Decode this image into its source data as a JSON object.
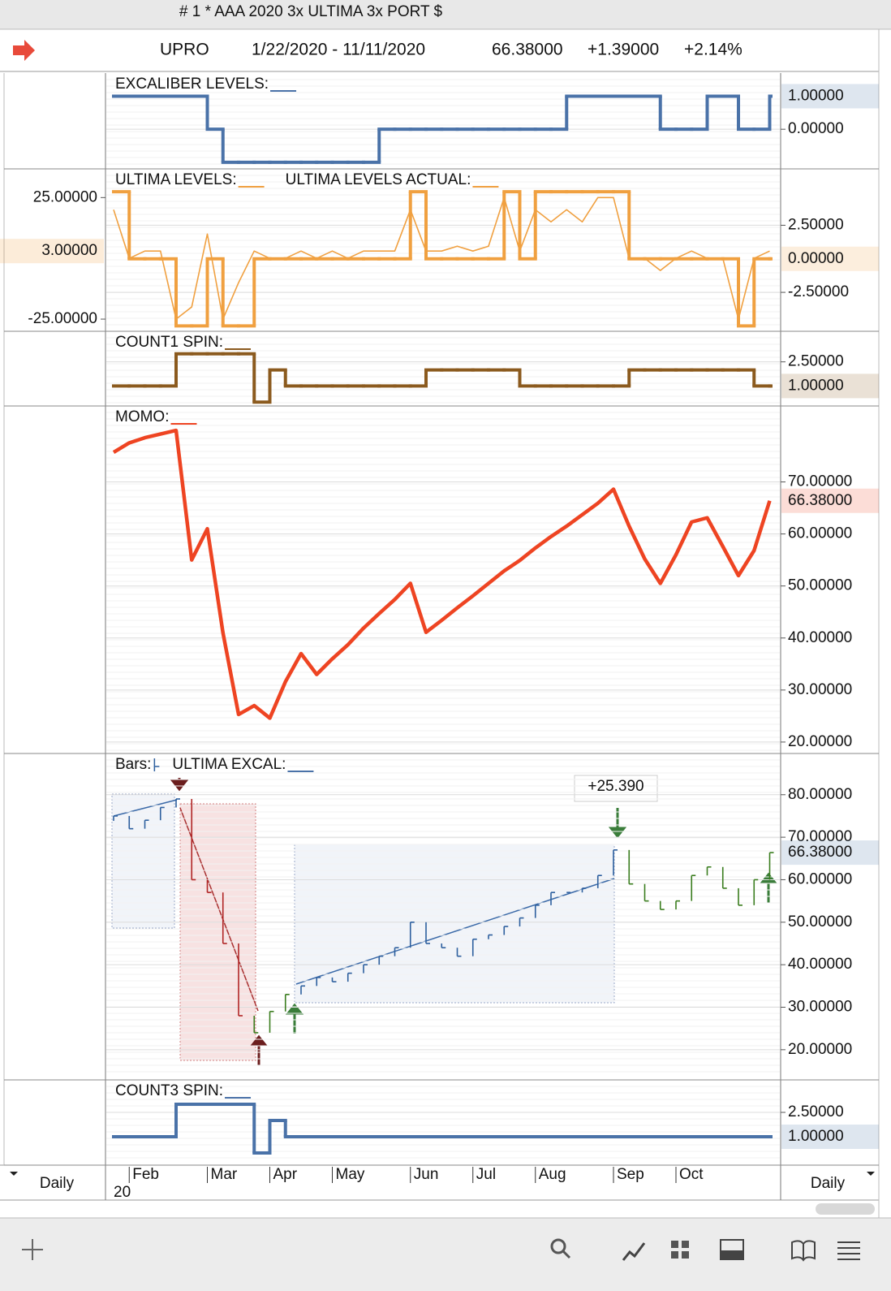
{
  "header": {
    "title": "# 1 * AAA 2020 3x ULTIMA 3x PORT $",
    "symbol": "UPRO",
    "range": "1/22/2020 - 11/11/2020",
    "last": "66.38000",
    "change": "+1.39000",
    "change_pct": "+2.14%"
  },
  "x_axis": {
    "categories": [
      null,
      "Feb",
      null,
      null,
      null,
      null,
      "Mar",
      null,
      null,
      null,
      "Apr",
      null,
      null,
      null,
      "May",
      null,
      null,
      null,
      null,
      "Jun",
      null,
      null,
      null,
      "Jul",
      null,
      null,
      null,
      "Aug",
      null,
      null,
      null,
      null,
      "Sep",
      null,
      null,
      null,
      "Oct",
      null,
      null,
      null,
      null,
      null,
      null
    ],
    "year_label": "20",
    "period": "Daily"
  },
  "chart_data": [
    {
      "type": "line",
      "grid": true,
      "series": [
        {
          "name": "EXCALIBER LEVELS:",
          "color": "#4a72a8",
          "line": "step",
          "values": [
            1,
            1,
            1,
            1,
            1,
            1,
            0,
            -1,
            -1,
            -1,
            -1,
            -1,
            -1,
            -1,
            -1,
            -1,
            -1,
            0,
            0,
            0,
            0,
            0,
            0,
            0,
            0,
            0,
            0,
            0,
            0,
            1,
            1,
            1,
            1,
            1,
            1,
            0,
            0,
            0,
            1,
            1,
            0,
            0,
            1
          ]
        }
      ],
      "ylim": [
        -1.2,
        1.7
      ],
      "yticks": [
        {
          "value": 0,
          "label": "0.00000"
        }
      ],
      "last_value": {
        "value": 1,
        "label": "1.00000"
      }
    },
    {
      "type": "line",
      "grid": true,
      "series": [
        {
          "name": "ULTIMA LEVELS:",
          "color": "#f0a040",
          "line": "step",
          "values": [
            5,
            0,
            0,
            0,
            -5,
            -5,
            0,
            -5,
            -5,
            0,
            0,
            0,
            0,
            0,
            0,
            0,
            0,
            0,
            0,
            5,
            0,
            0,
            0,
            0,
            0,
            5,
            0,
            5,
            5,
            5,
            5,
            5,
            5,
            0,
            0,
            0,
            0,
            0,
            0,
            0,
            -5,
            0,
            0
          ]
        },
        {
          "name": "ULTIMA LEVELS ACTUAL:",
          "color": "#f0a040",
          "line": "thin",
          "axis": "y2",
          "values": [
            20,
            0,
            3,
            3,
            -25,
            -20,
            10,
            -25,
            -10,
            3,
            0,
            0,
            3,
            0,
            3,
            0,
            3,
            3,
            3,
            20,
            3,
            3,
            5,
            3,
            5,
            25,
            3,
            20,
            15,
            20,
            15,
            25,
            25,
            0,
            0,
            -5,
            0,
            3,
            0,
            0,
            -25,
            0,
            3
          ]
        }
      ],
      "ylim": [
        -5.4,
        6.7
      ],
      "yticks": [
        {
          "value": 2.5,
          "label": "2.50000"
        },
        {
          "value": -2.5,
          "label": "-2.50000"
        }
      ],
      "last_value": {
        "value": 0,
        "label": "0.00000"
      },
      "y2lim": [
        -30,
        36.8
      ],
      "y2ticks": [
        {
          "value": 25,
          "label": "25.00000"
        },
        {
          "value": -25,
          "label": "-25.00000"
        }
      ],
      "y2_last_value": {
        "value": 3,
        "label": "3.00000"
      }
    },
    {
      "type": "line",
      "grid": true,
      "series": [
        {
          "name": "COUNT1 SPIN:",
          "color": "#8b5a1e",
          "line": "step",
          "values": [
            1,
            1,
            1,
            1,
            3,
            3,
            3,
            3,
            3,
            0,
            2,
            1,
            1,
            1,
            1,
            1,
            1,
            1,
            1,
            1,
            2,
            2,
            2,
            2,
            2,
            2,
            1,
            1,
            1,
            1,
            1,
            1,
            1,
            2,
            2,
            2,
            2,
            2,
            2,
            2,
            2,
            1,
            1
          ]
        }
      ],
      "ylim": [
        -0.24,
        4.4
      ],
      "yticks": [
        {
          "value": 2.5,
          "label": "2.50000"
        }
      ],
      "last_value": {
        "value": 1,
        "label": "1.00000"
      }
    },
    {
      "type": "line",
      "grid": true,
      "series": [
        {
          "name": "MOMO:",
          "color": "#ee4422",
          "line": "thick",
          "values": [
            75.7,
            77.5,
            78.5,
            79.2,
            79.9,
            55,
            61,
            41,
            25.3,
            27,
            24.6,
            31.6,
            37,
            33,
            36,
            38.7,
            41.9,
            44.7,
            47.4,
            50.5,
            41.1,
            43.4,
            45.8,
            48.1,
            50.5,
            52.9,
            54.9,
            57.3,
            59.5,
            61.5,
            63.7,
            65.9,
            68.6,
            61.5,
            55.2,
            50.5,
            56,
            62.3,
            63.1,
            57.6,
            52,
            56.8,
            66.38
          ]
        }
      ],
      "ylim": [
        17.8,
        84.6
      ],
      "yticks": [
        {
          "value": 70,
          "label": "70.00000"
        },
        {
          "value": 60,
          "label": "60.00000"
        },
        {
          "value": 50,
          "label": "50.00000"
        },
        {
          "value": 40,
          "label": "40.00000"
        },
        {
          "value": 30,
          "label": "30.00000"
        },
        {
          "value": 20,
          "label": "20.00000"
        }
      ],
      "last_value": {
        "value": 66.38,
        "label": "66.38000"
      }
    },
    {
      "type": "bars",
      "grid": true,
      "overlay": "ULTIMA EXCAL:",
      "annotation": "+25.390",
      "series": [
        {
          "name": "Bars:",
          "color": "#4a72a8",
          "values": [
            75,
            72,
            74,
            77,
            79,
            60,
            57,
            45,
            28,
            24,
            29,
            33,
            35,
            37,
            36,
            38,
            40,
            42,
            44,
            50,
            45,
            44,
            42,
            46,
            47,
            49,
            51,
            54,
            57,
            57,
            58,
            61,
            67,
            59,
            55,
            53,
            55,
            61,
            63,
            58,
            54,
            60,
            66.38
          ],
          "colors": [
            "#2d5f9e",
            "#2d5f9e",
            "#2d5f9e",
            "#2d5f9e",
            "#2d5f9e",
            "#b02525",
            "#b02525",
            "#b02525",
            "#b02525",
            "#3a7d1e",
            "#3a7d1e",
            "#3a7d1e",
            "#2d5f9e",
            "#2d5f9e",
            "#2d5f9e",
            "#2d5f9e",
            "#2d5f9e",
            "#2d5f9e",
            "#2d5f9e",
            "#2d5f9e",
            "#2d5f9e",
            "#2d5f9e",
            "#2d5f9e",
            "#2d5f9e",
            "#2d5f9e",
            "#2d5f9e",
            "#2d5f9e",
            "#2d5f9e",
            "#2d5f9e",
            "#2d5f9e",
            "#2d5f9e",
            "#2d5f9e",
            "#2d5f9e",
            "#3a7d1e",
            "#3a7d1e",
            "#3a7d1e",
            "#3a7d1e",
            "#3a7d1e",
            "#3a7d1e",
            "#3a7d1e",
            "#3a7d1e",
            "#3a7d1e",
            "#3a7d1e"
          ]
        }
      ],
      "ylim": [
        12.9,
        89.7
      ],
      "yticks": [
        {
          "value": 80,
          "label": "80.00000"
        },
        {
          "value": 70,
          "label": "70.00000"
        },
        {
          "value": 60,
          "label": "60.00000"
        },
        {
          "value": 50,
          "label": "50.00000"
        },
        {
          "value": 40,
          "label": "40.00000"
        },
        {
          "value": 30,
          "label": "30.00000"
        },
        {
          "value": 20,
          "label": "20.00000"
        }
      ],
      "last_value": {
        "value": 66.38,
        "label": "66.38000"
      }
    },
    {
      "type": "line",
      "grid": true,
      "series": [
        {
          "name": "COUNT3 SPIN:",
          "color": "#4a72a8",
          "line": "step",
          "values": [
            1,
            1,
            1,
            1,
            3,
            3,
            3,
            3,
            3,
            0,
            2,
            1,
            1,
            1,
            1,
            1,
            1,
            1,
            1,
            1,
            1,
            1,
            1,
            1,
            1,
            1,
            1,
            1,
            1,
            1,
            1,
            1,
            1,
            1,
            1,
            1,
            1,
            1,
            1,
            1,
            1,
            1,
            1
          ]
        }
      ],
      "ylim": [
        -0.75,
        4.5
      ],
      "yticks": [
        {
          "value": 2.5,
          "label": "2.50000"
        }
      ],
      "last_value": {
        "value": 1,
        "label": "1.00000"
      }
    }
  ]
}
